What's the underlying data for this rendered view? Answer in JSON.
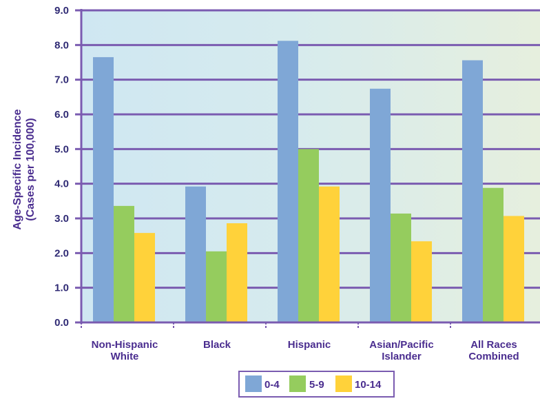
{
  "chart_data": {
    "type": "bar",
    "title": "",
    "xlabel": "",
    "ylabel": "Age-Specific Incidence",
    "ylabel_line2": "(Cases per 100,000)",
    "ylim": [
      0,
      9
    ],
    "yticks": [
      "0.0",
      "1.0",
      "2.0",
      "3.0",
      "4.0",
      "5.0",
      "6.0",
      "7.0",
      "8.0",
      "9.0"
    ],
    "categories": [
      [
        "Non-Hispanic",
        "White"
      ],
      [
        "Black"
      ],
      [
        "Hispanic"
      ],
      [
        "Asian/Pacific",
        "Islander"
      ],
      [
        "All Races",
        "Combined"
      ]
    ],
    "series": [
      {
        "name": "0-4",
        "color": "#7fa7d6",
        "values": [
          7.65,
          3.92,
          8.12,
          6.74,
          7.56
        ]
      },
      {
        "name": "5-9",
        "color": "#95cc5e",
        "values": [
          3.36,
          2.05,
          5.0,
          3.14,
          3.88
        ]
      },
      {
        "name": "10-14",
        "color": "#ffd23a",
        "values": [
          2.58,
          2.86,
          3.92,
          2.34,
          3.07
        ]
      }
    ],
    "grid": true,
    "legend_position": "bottom-center",
    "colors": {
      "axis": "#7a5bb0",
      "gridline": "#7a5bb0",
      "text": "#4a2d8f",
      "bg_left": "#cfe7f2",
      "bg_right": "#e6efde"
    }
  }
}
